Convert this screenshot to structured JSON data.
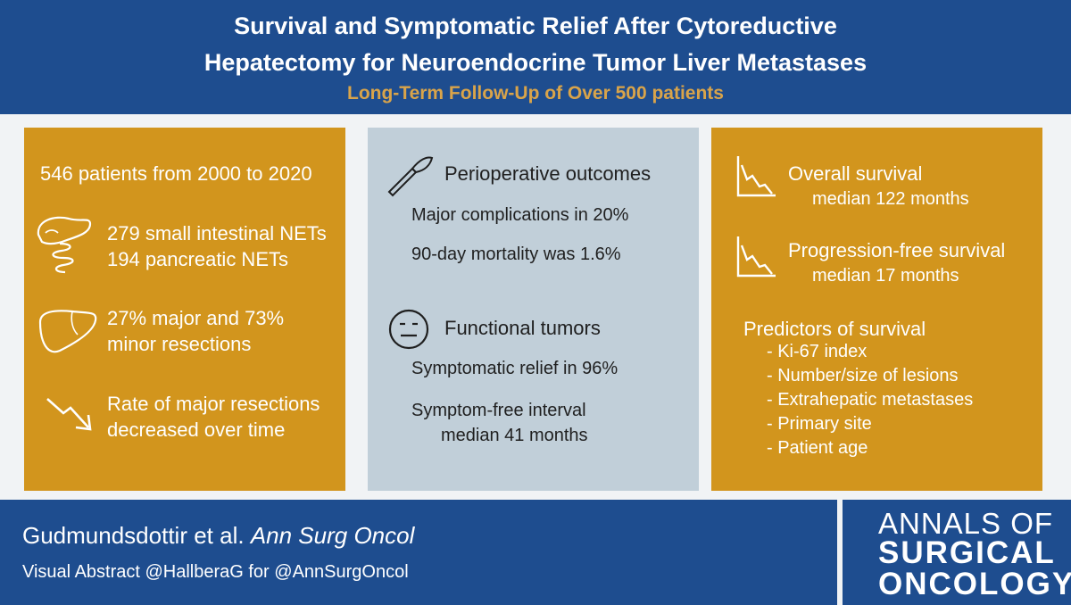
{
  "header": {
    "title_line1": "Survival and Symptomatic Relief After Cytoreductive",
    "title_line2": "Hepatectomy for Neuroendocrine Tumor Liver Metastases",
    "subtitle": "Long-Term Follow-Up of Over 500 patients"
  },
  "left_panel": {
    "patients": "546 patients from 2000 to 2020",
    "sites_line1": "279 small intestinal NETs",
    "sites_line2": "194 pancreatic NETs",
    "resections_line1": "27% major and 73%",
    "resections_line2": "minor resections",
    "trend_line1": "Rate of major resections",
    "trend_line2": "decreased over time"
  },
  "middle_panel": {
    "periop_heading": "Perioperative outcomes",
    "complications": "Major complications in 20%",
    "mortality": "90-day mortality was 1.6%",
    "functional_heading": "Functional tumors",
    "relief": "Symptomatic relief in 96%",
    "interval_line1": "Symptom-free interval",
    "interval_line2": "median 41 months"
  },
  "right_panel": {
    "os_heading": "Overall survival",
    "os_value": "median 122 months",
    "pfs_heading": "Progression-free survival",
    "pfs_value": "median 17 months",
    "predictors_heading": "Predictors of survival",
    "predictors": [
      "- Ki-67 index",
      "- Number/size of lesions",
      "- Extrahepatic metastases",
      "- Primary site",
      "- Patient age"
    ]
  },
  "footer": {
    "authors": "Gudmundsdottir et al.",
    "journal": "Ann Surg Oncol",
    "credit": "Visual Abstract @HallberaG for @AnnSurgOncol"
  },
  "logo": {
    "line1": "ANNALS OF",
    "line2": "SURGICAL",
    "line3": "ONCOLOGY"
  },
  "icons": [
    "intestine-icon",
    "liver-icon",
    "decrease-arrow-icon",
    "scalpel-icon",
    "neutral-face-icon",
    "survival-curve-icon"
  ],
  "colors": {
    "navy": "#1e4d8f",
    "gold": "#d2951d",
    "gray_panel": "#c1cfd9",
    "subtitle_gold": "#d9a44a"
  }
}
